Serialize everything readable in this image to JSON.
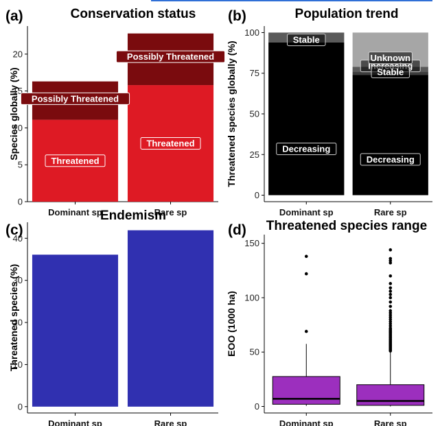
{
  "chart_data": [
    {
      "panel": "(a)",
      "type": "bar",
      "stacked": true,
      "title": "Conservation status",
      "xlabel": "",
      "ylabel": "Species globally (%)",
      "categories": [
        "Dominant sp",
        "Rare sp"
      ],
      "ylim": [
        0,
        23.8
      ],
      "yticks": [
        0,
        5,
        10,
        15,
        20
      ],
      "series": [
        {
          "name": "Threatened",
          "values": [
            11.1,
            15.8
          ],
          "color": "#de1a24"
        },
        {
          "name": "Possibly Threatened",
          "values": [
            5.2,
            7.0
          ],
          "color": "#7a0b0e"
        }
      ]
    },
    {
      "panel": "(b)",
      "type": "bar",
      "stacked": true,
      "title": "Population trend",
      "xlabel": "",
      "ylabel": "Threatened species globally (%)",
      "categories": [
        "Dominant sp",
        "Rare sp"
      ],
      "ylim": [
        -4,
        104
      ],
      "yticks": [
        0,
        25,
        50,
        75,
        100
      ],
      "series": [
        {
          "name": "Decreasing",
          "values": [
            94,
            74
          ],
          "color": "#000000"
        },
        {
          "name": "Increasing",
          "values": [
            0,
            2
          ],
          "color": "#3c3c3c"
        },
        {
          "name": "Stable",
          "values": [
            6,
            3
          ],
          "color": "#5a5a5a"
        },
        {
          "name": "Unknown",
          "values": [
            0,
            21
          ],
          "color": "#a6a6a6"
        }
      ],
      "labels": [
        {
          "text": "Decreasing",
          "cat": 0,
          "y": 28.5
        },
        {
          "text": "Stable",
          "cat": 0,
          "y": 95.5
        },
        {
          "text": "Decreasing",
          "cat": 1,
          "y": 22
        },
        {
          "text": "Increasing",
          "cat": 1,
          "y": 79.5
        },
        {
          "text": "Stable",
          "cat": 1,
          "y": 75.8
        },
        {
          "text": "Unknown",
          "cat": 1,
          "y": 84.5
        }
      ]
    },
    {
      "panel": "(c)",
      "type": "bar",
      "title": "Endemism",
      "xlabel": "",
      "ylabel": "Threatened species (%)",
      "categories": [
        "Dominant sp",
        "Rare sp"
      ],
      "values": [
        36.1,
        41.9
      ],
      "color": "#3030b0",
      "ylim": [
        -1.5,
        43.8
      ],
      "yticks": [
        0,
        10,
        20,
        30,
        40
      ]
    },
    {
      "panel": "(d)",
      "type": "box",
      "title": "Threatened species range",
      "xlabel": "",
      "ylabel": "EOO (1000 ha)",
      "categories": [
        "Dominant sp",
        "Rare sp"
      ],
      "ylim": [
        -6,
        158
      ],
      "yticks": [
        0,
        50,
        100,
        150
      ],
      "color": "#9c2fbe",
      "boxes": [
        {
          "min": 0.5,
          "q1": 2,
          "median": 7,
          "q3": 27.5,
          "max": 57.5,
          "outliers": [
            69,
            122,
            138
          ]
        },
        {
          "min": 0,
          "q1": 1,
          "median": 5,
          "q3": 20,
          "max": 50,
          "outliers": [
            51,
            52,
            53,
            54,
            55,
            56,
            57,
            58,
            59,
            60,
            61,
            62,
            63,
            64,
            65,
            66,
            67,
            68,
            69,
            70,
            71,
            72,
            74,
            76,
            78,
            80,
            82,
            84,
            86,
            88,
            92,
            96,
            100,
            103,
            106,
            109,
            113,
            120,
            132,
            134,
            136,
            144
          ]
        }
      ]
    }
  ]
}
